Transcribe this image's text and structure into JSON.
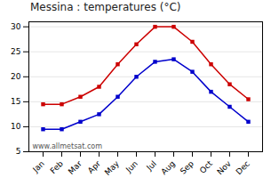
{
  "chart_data": {
    "type": "line",
    "title": "Messina : temperatures (°C)",
    "categories": [
      "Jan",
      "Feb",
      "Mar",
      "Apr",
      "May",
      "Jun",
      "Jul",
      "Aug",
      "Sep",
      "Oct",
      "Nov",
      "Dec"
    ],
    "series": [
      {
        "color": "#cc0000",
        "marker": "square",
        "values": [
          14.5,
          14.5,
          16.0,
          18.0,
          22.5,
          26.5,
          30.0,
          30.0,
          27.0,
          22.5,
          18.5,
          15.5
        ]
      },
      {
        "color": "#0000cc",
        "marker": "square",
        "values": [
          9.5,
          9.5,
          11.0,
          12.5,
          16.0,
          20.0,
          23.0,
          23.5,
          21.0,
          17.0,
          14.0,
          11.0
        ]
      }
    ],
    "ylim": [
      5,
      31
    ],
    "yticks": [
      5,
      10,
      15,
      20,
      25,
      30
    ],
    "grid": true,
    "annotation": "www.allmetsat.com"
  }
}
